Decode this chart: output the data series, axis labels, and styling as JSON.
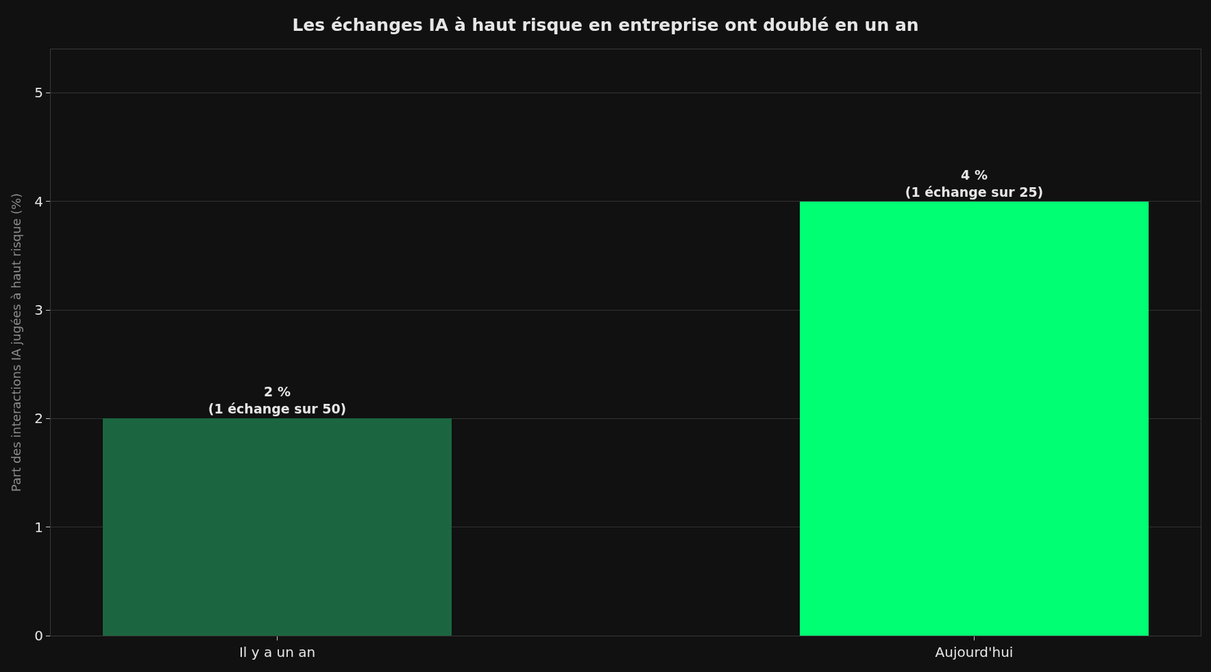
{
  "chart_data": {
    "type": "bar",
    "title": "Les échanges IA à haut risque en entreprise ont doublé en un an",
    "ylabel": "Part des interactions IA jugées à haut risque (%)",
    "categories": [
      "Il y a un an",
      "Aujourd'hui"
    ],
    "values": [
      2,
      4
    ],
    "colors": [
      "#1b6640",
      "#00ff73"
    ],
    "value_labels": [
      "2 %\n(1 échange sur 50)",
      "4 %\n(1 échange sur 25)"
    ],
    "ylim": [
      0,
      5.4
    ],
    "yticks": [
      0,
      1,
      2,
      3,
      4,
      5
    ],
    "grid": "y",
    "legend": false
  }
}
